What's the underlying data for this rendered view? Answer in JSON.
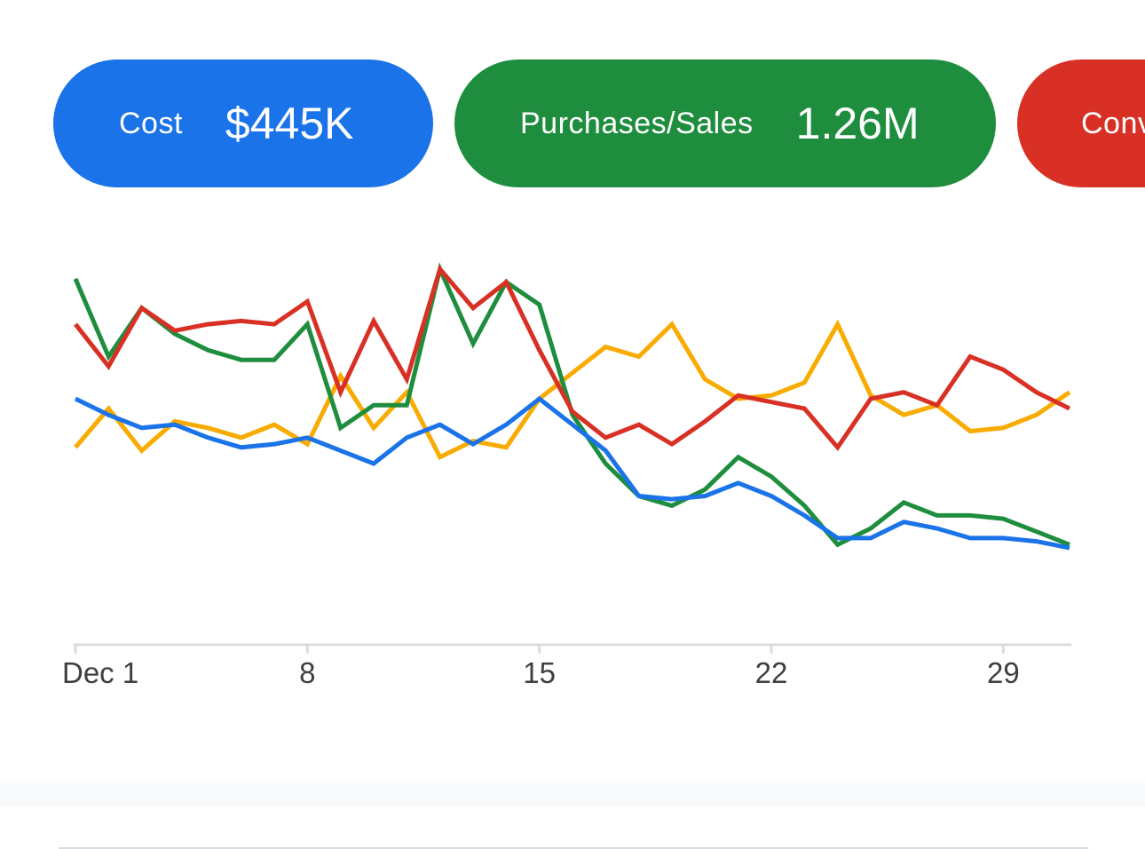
{
  "chips": [
    {
      "id": "cost",
      "label": "Cost",
      "value": "$445K",
      "color": "#1a73e8"
    },
    {
      "id": "purchases",
      "label": "Purchases/Sales",
      "value": "1.26M",
      "color": "#1e8e3e"
    },
    {
      "id": "conv",
      "label": "Conv",
      "value": "",
      "color": "#d93025"
    }
  ],
  "chart_data": {
    "type": "line",
    "x": [
      1,
      2,
      3,
      4,
      5,
      6,
      7,
      8,
      9,
      10,
      11,
      12,
      13,
      14,
      15,
      16,
      17,
      18,
      19,
      20,
      21,
      22,
      23,
      24,
      25,
      26,
      27,
      28,
      29,
      30,
      31
    ],
    "x_tick_labels": [
      {
        "x": 1,
        "label": "Dec 1"
      },
      {
        "x": 8,
        "label": "8"
      },
      {
        "x": 15,
        "label": "15"
      },
      {
        "x": 22,
        "label": "22"
      },
      {
        "x": 29,
        "label": "29"
      }
    ],
    "ylim": [
      0,
      100
    ],
    "grid": false,
    "series": [
      {
        "color": "#f9ab00",
        "values": [
          45,
          57,
          44,
          53,
          51,
          48,
          52,
          46,
          67,
          51,
          62,
          42,
          47,
          45,
          60,
          68,
          76,
          73,
          83,
          66,
          60,
          61,
          65,
          83,
          61,
          55,
          58,
          50,
          51,
          55,
          62
        ]
      },
      {
        "color": "#1e8e3e",
        "values": [
          97,
          73,
          88,
          80,
          75,
          72,
          72,
          83,
          51,
          58,
          58,
          100,
          77,
          96,
          89,
          55,
          40,
          30,
          27,
          32,
          42,
          36,
          27,
          15,
          20,
          28,
          24,
          24,
          23,
          19,
          15
        ]
      },
      {
        "color": "#d93025",
        "values": [
          83,
          70,
          88,
          81,
          83,
          84,
          83,
          90,
          62,
          84,
          66,
          100,
          88,
          96,
          75,
          56,
          48,
          52,
          46,
          53,
          61,
          59,
          57,
          45,
          60,
          62,
          58,
          73,
          69,
          62,
          57
        ]
      },
      {
        "color": "#1a73e8",
        "values": [
          60,
          55,
          51,
          52,
          48,
          45,
          46,
          48,
          44,
          40,
          48,
          52,
          46,
          52,
          60,
          52,
          44,
          30,
          29,
          30,
          34,
          30,
          24,
          17,
          17,
          22,
          20,
          17,
          17,
          16,
          14
        ]
      }
    ]
  }
}
